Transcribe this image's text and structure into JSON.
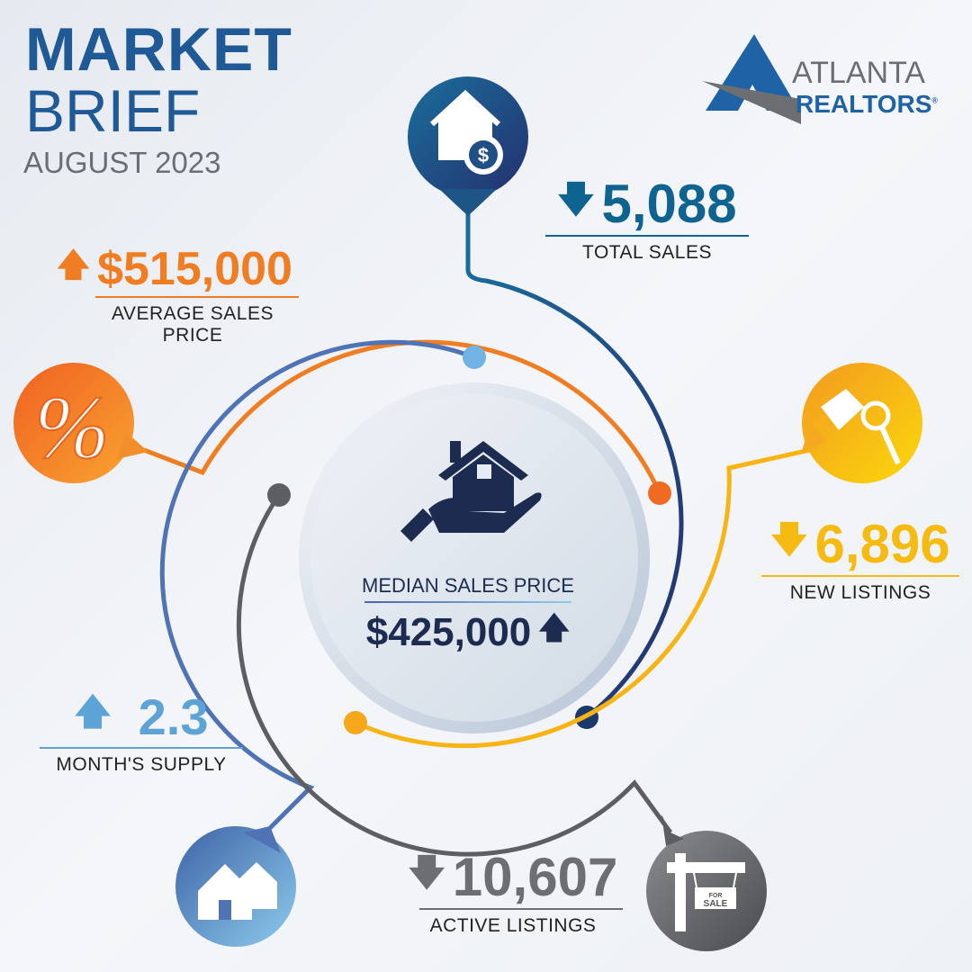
{
  "header": {
    "title_line1": "MARKET",
    "title_line2": "BRIEF",
    "period": "AUGUST 2023"
  },
  "logo": {
    "line1": "ATLANTA",
    "line2": "REALTORS",
    "mark": "®"
  },
  "center": {
    "label": "MEDIAN SALES PRICE",
    "value": "$425,000",
    "trend": "up"
  },
  "stats": [
    {
      "label": "TOTAL SALES",
      "value": "5,088",
      "trend": "down",
      "color": "#0e6391",
      "icon": "house-dollar-icon"
    },
    {
      "label": "AVERAGE SALES PRICE",
      "value": "$515,000",
      "trend": "up",
      "color": "#f07d22",
      "icon": "percent-icon"
    },
    {
      "label": "NEW LISTINGS",
      "value": "6,896",
      "trend": "down",
      "color": "#f6bb12",
      "icon": "house-key-icon"
    },
    {
      "label": "MONTH'S SUPPLY",
      "value": "2.3",
      "trend": "up",
      "color": "#5ea3d6",
      "icon": "houses-icon"
    },
    {
      "label": "ACTIVE LISTINGS",
      "value": "10,607",
      "trend": "down",
      "color": "#6d6e71",
      "icon": "for-sale-sign-icon"
    }
  ],
  "sign_text": {
    "for": "FOR",
    "sale": "SALE"
  },
  "percent_symbol": "%"
}
